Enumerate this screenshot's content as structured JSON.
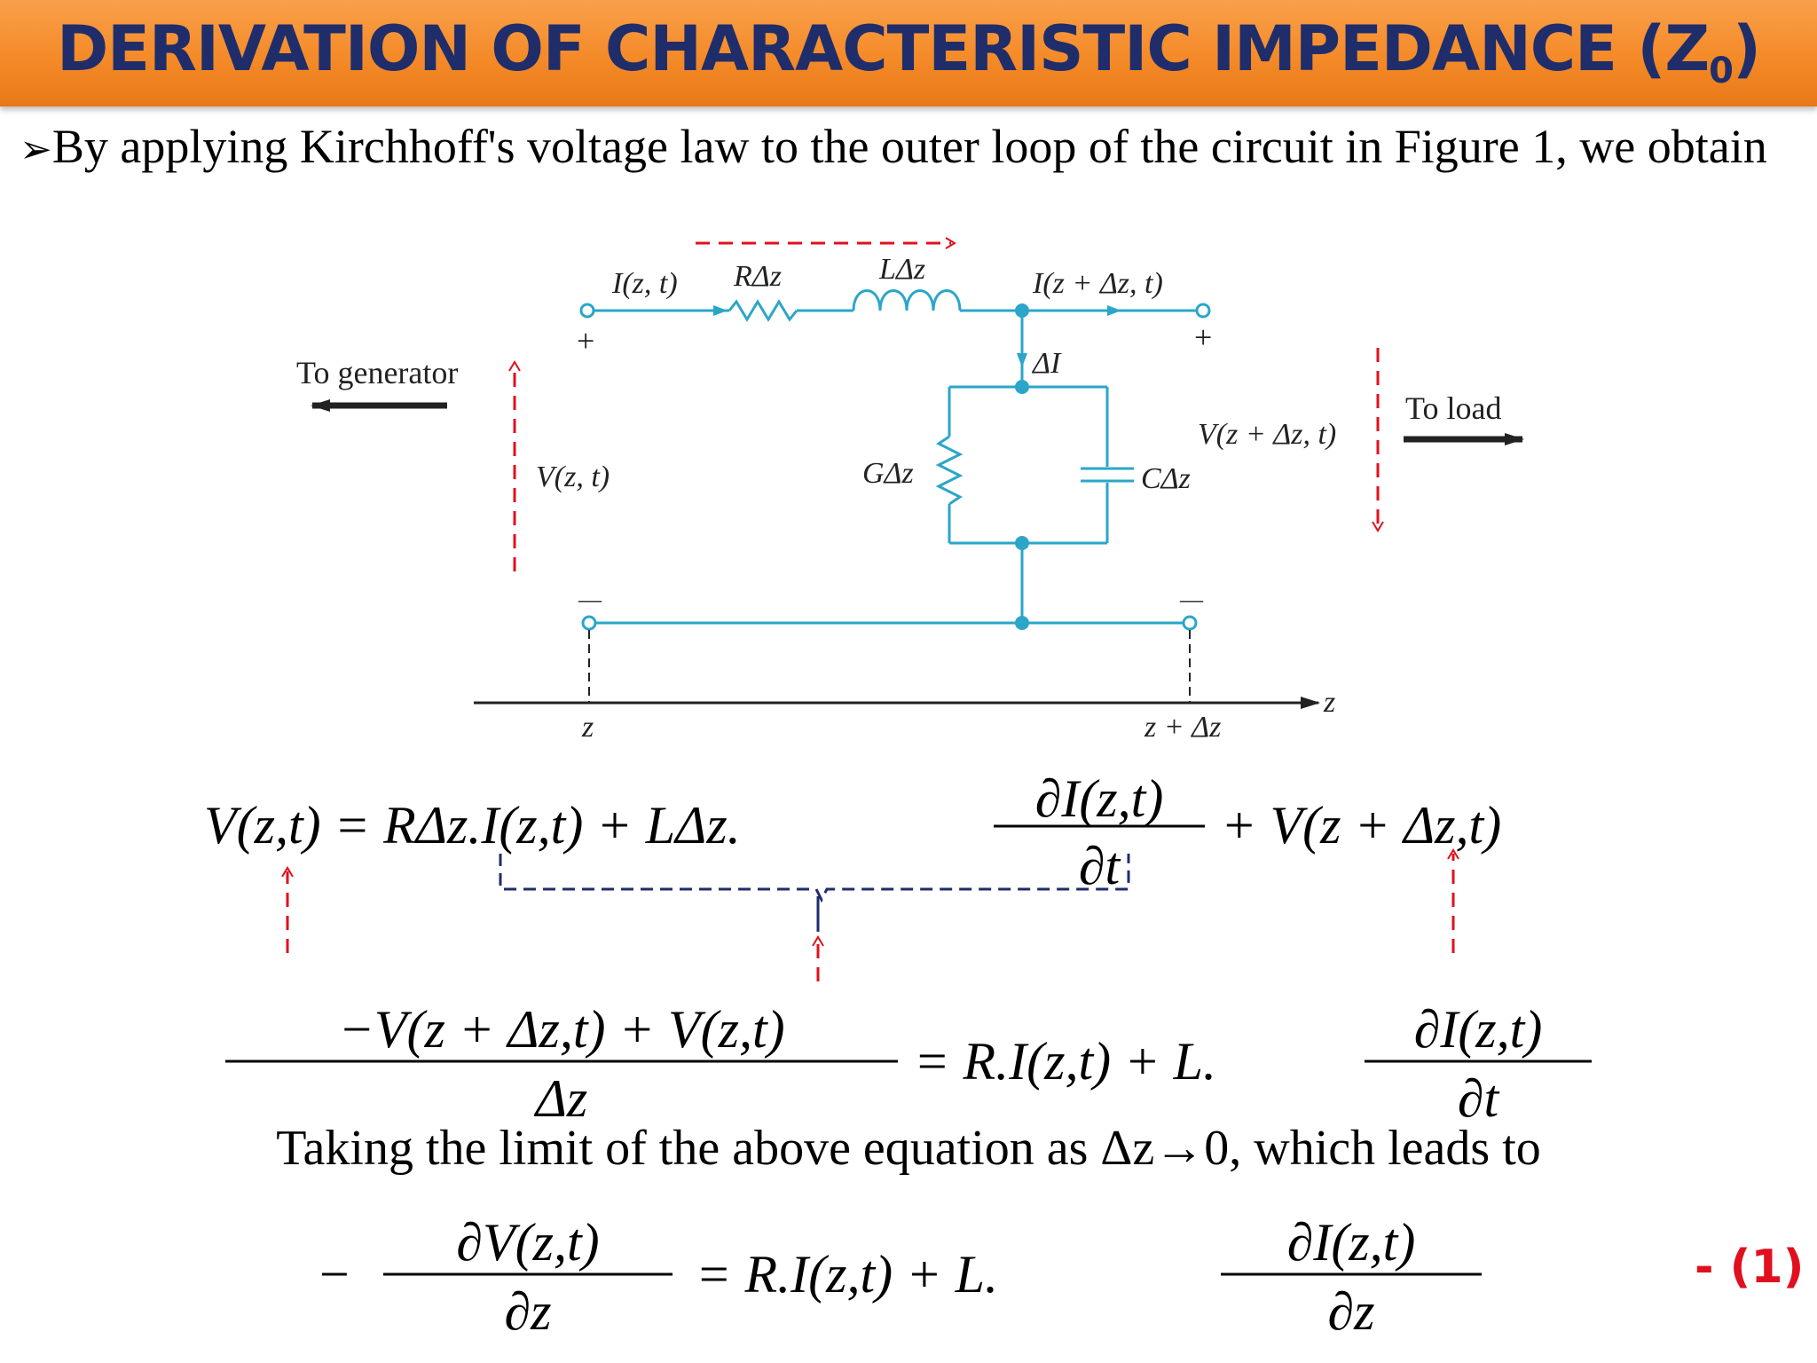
{
  "header": {
    "title_main": "DERIVATION OF CHARACTERISTIC IMPEDANCE (Z",
    "title_sub": "0",
    "title_end": ")"
  },
  "intro": {
    "bullet": "➢",
    "text": "By applying Kirchhoff's voltage law to the outer loop of the circuit in Figure 1, we obtain"
  },
  "figure": {
    "to_generator": "To generator",
    "to_load": "To load",
    "i_left": "I(z, t)",
    "r_label": "RΔz",
    "l_label": "LΔz",
    "i_right": "I(z + Δz, t)",
    "delta_i": "ΔI",
    "g_label": "GΔz",
    "c_label": "CΔz",
    "v_left": "V(z, t)",
    "v_right": "V(z + Δz, t)",
    "plus": "+",
    "minus": "—",
    "z_tick": "z",
    "z_dz_tick": "z + Δz",
    "z_axis": "z"
  },
  "equations": {
    "eq1_lhs": "V(z,t) = RΔz.I(z,t) + LΔz.",
    "eq1_num": "∂I(z,t)",
    "eq1_den": "∂t",
    "eq1_tail": "+ V(z + Δz,t)",
    "eq2_num": "−V(z + Δz,t) + V(z,t)",
    "eq2_den": "Δz",
    "eq2_mid": "= R.I(z,t) + L.",
    "eq2_rnum": "∂I(z,t)",
    "eq2_rden": "∂t",
    "taking": "Taking the limit of the above equation as Δz→0, which leads to",
    "eq3_minus": "−",
    "eq3_num": "∂V(z,t)",
    "eq3_den": "∂z",
    "eq3_mid": "= R.I(z,t) + L.",
    "eq3_rnum": "∂I(z,t)",
    "eq3_rden": "∂z",
    "eq_number": "- (1)"
  },
  "colors": {
    "banner": "#f48a28",
    "title": "#1f2d6b",
    "circuit": "#2ba6c9",
    "red_arrow": "#e0101e",
    "brace": "#1f2d6b"
  }
}
